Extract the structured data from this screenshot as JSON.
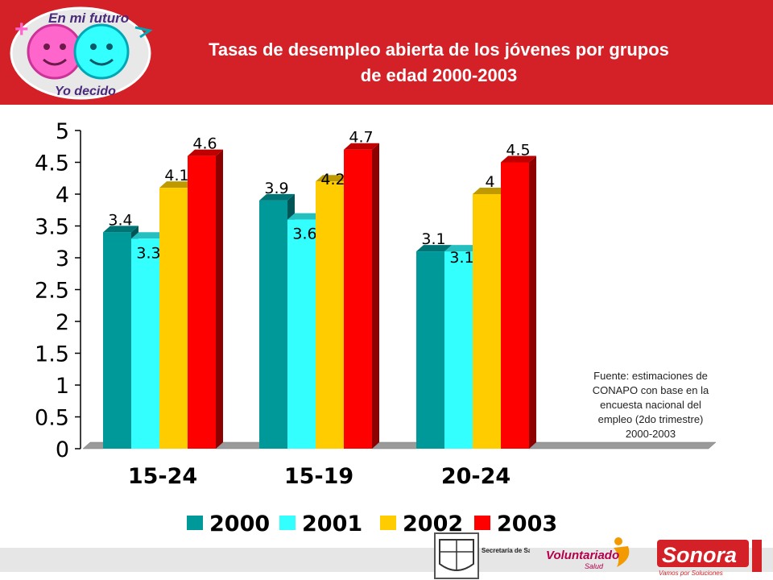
{
  "header": {
    "title_line1": "Tasas de desempleo abierta de los jóvenes por grupos",
    "title_line2": "de edad 2000-2003",
    "logo_text_top": "En mi futuro",
    "logo_text_bottom": "Yo decido"
  },
  "colors": {
    "header_bg": "#d42027",
    "series": [
      "#00999a",
      "#33ffff",
      "#ffcc00",
      "#ff0000"
    ]
  },
  "chart_data": {
    "type": "bar",
    "title": "Tasas de desempleo abierta de los jóvenes por grupos de edad 2000-2003",
    "categories": [
      "15-24",
      "15-19",
      "20-24"
    ],
    "series": [
      {
        "name": "2000",
        "values": [
          3.4,
          3.9,
          3.1
        ]
      },
      {
        "name": "2001",
        "values": [
          3.3,
          3.6,
          3.1
        ]
      },
      {
        "name": "2002",
        "values": [
          4.1,
          4.2,
          4.0
        ]
      },
      {
        "name": "2003",
        "values": [
          4.6,
          4.7,
          4.5
        ]
      }
    ],
    "value_labels": [
      [
        "3.4",
        "3.9",
        "3.1"
      ],
      [
        "3.3",
        "3.6",
        "3.1"
      ],
      [
        "4.1",
        "4.2",
        "4"
      ],
      [
        "4.6",
        "4.7",
        "4.5"
      ]
    ],
    "yticks": [
      "0",
      "0.5",
      "1",
      "1.5",
      "2",
      "2.5",
      "3",
      "3.5",
      "4",
      "4.5",
      "5"
    ],
    "ylim": [
      0,
      5
    ],
    "xlabel": "",
    "ylabel": "",
    "legend_position": "bottom",
    "style": "3d-bar"
  },
  "source_note": "Fuente: estimaciones de CONAPO con base en la encuesta nacional del empleo (2do trimestre) 2000-2003",
  "footer": {
    "secretaria": "Secretaría de Salud Pública",
    "voluntariado": "Voluntariado",
    "voluntariado_sub": "Salud",
    "sonora": "Sonora",
    "sonora_tagline": "Vamos por Soluciones"
  }
}
